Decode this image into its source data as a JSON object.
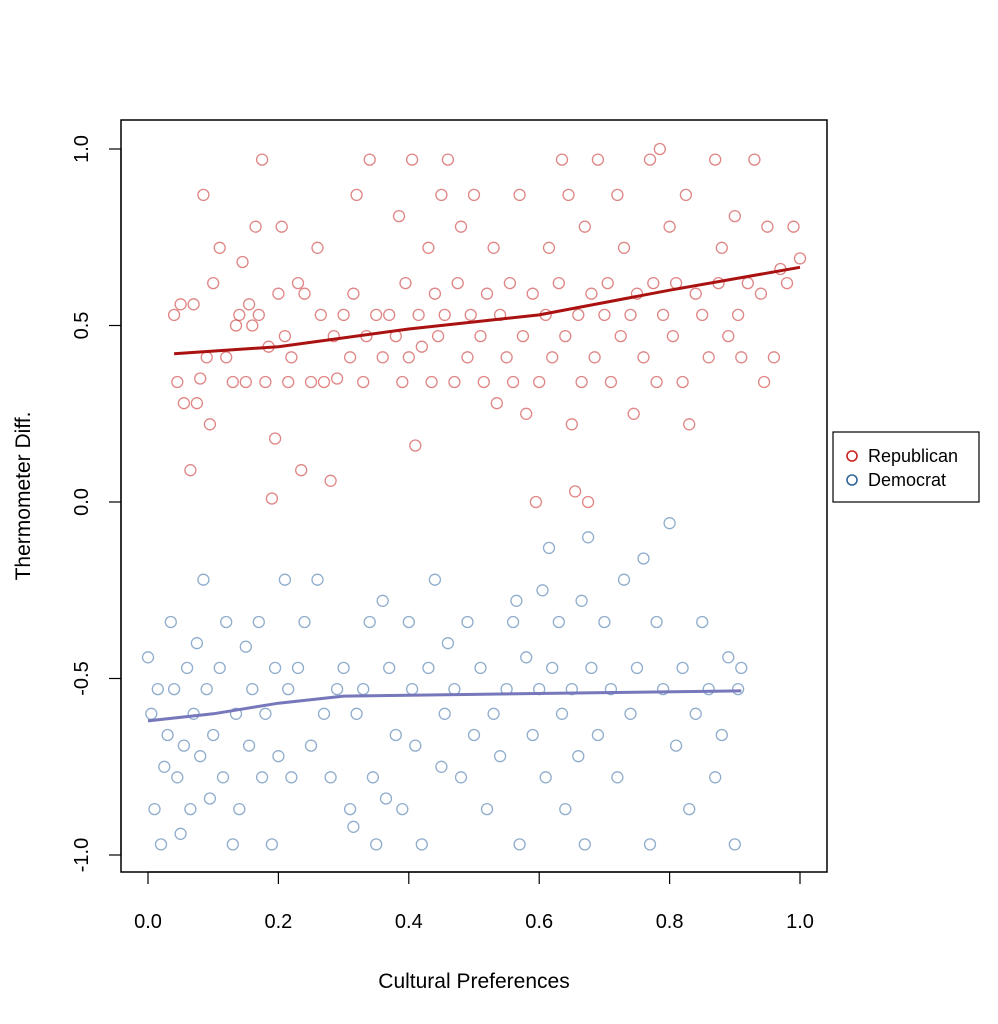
{
  "chart_data": {
    "type": "scatter",
    "title": "",
    "xlabel": "Cultural Preferences",
    "ylabel": "Thermometer Diff.",
    "xlim": [
      -0.04,
      1.04
    ],
    "ylim": [
      -1.06,
      1.08
    ],
    "xticks": [
      0.0,
      0.2,
      0.4,
      0.6,
      0.8,
      1.0
    ],
    "xtick_labels": [
      "0.0",
      "0.2",
      "0.4",
      "0.6",
      "0.8",
      "1.0"
    ],
    "yticks": [
      -1.0,
      -0.5,
      0.0,
      0.5,
      1.0
    ],
    "ytick_labels": [
      "-1.0",
      "-0.5",
      "0.0",
      "0.5",
      "1.0"
    ],
    "legend_position": "right",
    "series": [
      {
        "name": "Republican",
        "color": "#cc3333",
        "line_color": "#aa1111",
        "points": [
          [
            0.04,
            0.53
          ],
          [
            0.045,
            0.34
          ],
          [
            0.05,
            0.56
          ],
          [
            0.055,
            0.28
          ],
          [
            0.065,
            0.09
          ],
          [
            0.07,
            0.56
          ],
          [
            0.075,
            0.28
          ],
          [
            0.08,
            0.35
          ],
          [
            0.085,
            0.87
          ],
          [
            0.09,
            0.41
          ],
          [
            0.095,
            0.22
          ],
          [
            0.1,
            0.62
          ],
          [
            0.11,
            0.72
          ],
          [
            0.12,
            0.41
          ],
          [
            0.13,
            0.34
          ],
          [
            0.135,
            0.5
          ],
          [
            0.14,
            0.53
          ],
          [
            0.145,
            0.68
          ],
          [
            0.15,
            0.34
          ],
          [
            0.155,
            0.56
          ],
          [
            0.16,
            0.5
          ],
          [
            0.165,
            0.78
          ],
          [
            0.17,
            0.53
          ],
          [
            0.175,
            0.97
          ],
          [
            0.18,
            0.34
          ],
          [
            0.185,
            0.44
          ],
          [
            0.19,
            0.01
          ],
          [
            0.195,
            0.18
          ],
          [
            0.2,
            0.59
          ],
          [
            0.205,
            0.78
          ],
          [
            0.21,
            0.47
          ],
          [
            0.215,
            0.34
          ],
          [
            0.22,
            0.41
          ],
          [
            0.23,
            0.62
          ],
          [
            0.235,
            0.09
          ],
          [
            0.24,
            0.59
          ],
          [
            0.25,
            0.34
          ],
          [
            0.26,
            0.72
          ],
          [
            0.265,
            0.53
          ],
          [
            0.27,
            0.34
          ],
          [
            0.28,
            0.06
          ],
          [
            0.285,
            0.47
          ],
          [
            0.29,
            0.35
          ],
          [
            0.3,
            0.53
          ],
          [
            0.31,
            0.41
          ],
          [
            0.315,
            0.59
          ],
          [
            0.32,
            0.87
          ],
          [
            0.33,
            0.34
          ],
          [
            0.335,
            0.47
          ],
          [
            0.34,
            0.97
          ],
          [
            0.35,
            0.53
          ],
          [
            0.36,
            0.41
          ],
          [
            0.37,
            0.53
          ],
          [
            0.38,
            0.47
          ],
          [
            0.385,
            0.81
          ],
          [
            0.39,
            0.34
          ],
          [
            0.395,
            0.62
          ],
          [
            0.4,
            0.41
          ],
          [
            0.405,
            0.97
          ],
          [
            0.41,
            0.16
          ],
          [
            0.415,
            0.53
          ],
          [
            0.42,
            0.44
          ],
          [
            0.43,
            0.72
          ],
          [
            0.435,
            0.34
          ],
          [
            0.44,
            0.59
          ],
          [
            0.445,
            0.47
          ],
          [
            0.45,
            0.87
          ],
          [
            0.455,
            0.53
          ],
          [
            0.46,
            0.97
          ],
          [
            0.47,
            0.34
          ],
          [
            0.475,
            0.62
          ],
          [
            0.48,
            0.78
          ],
          [
            0.49,
            0.41
          ],
          [
            0.495,
            0.53
          ],
          [
            0.5,
            0.87
          ],
          [
            0.51,
            0.47
          ],
          [
            0.515,
            0.34
          ],
          [
            0.52,
            0.59
          ],
          [
            0.53,
            0.72
          ],
          [
            0.535,
            0.28
          ],
          [
            0.54,
            0.53
          ],
          [
            0.55,
            0.41
          ],
          [
            0.555,
            0.62
          ],
          [
            0.56,
            0.34
          ],
          [
            0.57,
            0.87
          ],
          [
            0.575,
            0.47
          ],
          [
            0.58,
            0.25
          ],
          [
            0.59,
            0.59
          ],
          [
            0.595,
            0.0
          ],
          [
            0.6,
            0.34
          ],
          [
            0.61,
            0.53
          ],
          [
            0.615,
            0.72
          ],
          [
            0.62,
            0.41
          ],
          [
            0.63,
            0.62
          ],
          [
            0.635,
            0.97
          ],
          [
            0.64,
            0.47
          ],
          [
            0.645,
            0.87
          ],
          [
            0.65,
            0.22
          ],
          [
            0.655,
            0.03
          ],
          [
            0.66,
            0.53
          ],
          [
            0.665,
            0.34
          ],
          [
            0.67,
            0.78
          ],
          [
            0.675,
            0.0
          ],
          [
            0.68,
            0.59
          ],
          [
            0.685,
            0.41
          ],
          [
            0.69,
            0.97
          ],
          [
            0.7,
            0.53
          ],
          [
            0.705,
            0.62
          ],
          [
            0.71,
            0.34
          ],
          [
            0.72,
            0.87
          ],
          [
            0.725,
            0.47
          ],
          [
            0.73,
            0.72
          ],
          [
            0.74,
            0.53
          ],
          [
            0.745,
            0.25
          ],
          [
            0.75,
            0.59
          ],
          [
            0.76,
            0.41
          ],
          [
            0.77,
            0.97
          ],
          [
            0.775,
            0.62
          ],
          [
            0.78,
            0.34
          ],
          [
            0.785,
            1.0
          ],
          [
            0.79,
            0.53
          ],
          [
            0.8,
            0.78
          ],
          [
            0.805,
            0.47
          ],
          [
            0.81,
            0.62
          ],
          [
            0.82,
            0.34
          ],
          [
            0.825,
            0.87
          ],
          [
            0.83,
            0.22
          ],
          [
            0.84,
            0.59
          ],
          [
            0.85,
            0.53
          ],
          [
            0.86,
            0.41
          ],
          [
            0.87,
            0.97
          ],
          [
            0.875,
            0.62
          ],
          [
            0.88,
            0.72
          ],
          [
            0.89,
            0.47
          ],
          [
            0.9,
            0.81
          ],
          [
            0.905,
            0.53
          ],
          [
            0.91,
            0.41
          ],
          [
            0.92,
            0.62
          ],
          [
            0.93,
            0.97
          ],
          [
            0.94,
            0.59
          ],
          [
            0.945,
            0.34
          ],
          [
            0.95,
            0.78
          ],
          [
            0.96,
            0.41
          ],
          [
            0.97,
            0.66
          ],
          [
            0.98,
            0.62
          ],
          [
            0.99,
            0.78
          ],
          [
            1.0,
            0.69
          ]
        ],
        "smooth": [
          [
            0.04,
            0.42
          ],
          [
            0.2,
            0.44
          ],
          [
            0.4,
            0.49
          ],
          [
            0.6,
            0.53
          ],
          [
            0.8,
            0.6
          ],
          [
            1.0,
            0.665
          ]
        ]
      },
      {
        "name": "Democrat",
        "color": "#4477aa",
        "line_color": "#7777bb",
        "points": [
          [
            0.0,
            -0.44
          ],
          [
            0.005,
            -0.6
          ],
          [
            0.01,
            -0.87
          ],
          [
            0.015,
            -0.53
          ],
          [
            0.02,
            -0.97
          ],
          [
            0.025,
            -0.75
          ],
          [
            0.03,
            -0.66
          ],
          [
            0.035,
            -0.34
          ],
          [
            0.04,
            -0.53
          ],
          [
            0.045,
            -0.78
          ],
          [
            0.05,
            -0.94
          ],
          [
            0.055,
            -0.69
          ],
          [
            0.06,
            -0.47
          ],
          [
            0.065,
            -0.87
          ],
          [
            0.07,
            -0.6
          ],
          [
            0.075,
            -0.4
          ],
          [
            0.08,
            -0.72
          ],
          [
            0.085,
            -0.22
          ],
          [
            0.09,
            -0.53
          ],
          [
            0.095,
            -0.84
          ],
          [
            0.1,
            -0.66
          ],
          [
            0.11,
            -0.47
          ],
          [
            0.115,
            -0.78
          ],
          [
            0.12,
            -0.34
          ],
          [
            0.13,
            -0.97
          ],
          [
            0.135,
            -0.6
          ],
          [
            0.14,
            -0.87
          ],
          [
            0.15,
            -0.41
          ],
          [
            0.155,
            -0.69
          ],
          [
            0.16,
            -0.53
          ],
          [
            0.17,
            -0.34
          ],
          [
            0.175,
            -0.78
          ],
          [
            0.18,
            -0.6
          ],
          [
            0.19,
            -0.97
          ],
          [
            0.195,
            -0.47
          ],
          [
            0.2,
            -0.72
          ],
          [
            0.21,
            -0.22
          ],
          [
            0.215,
            -0.53
          ],
          [
            0.22,
            -0.78
          ],
          [
            0.23,
            -0.47
          ],
          [
            0.24,
            -0.34
          ],
          [
            0.25,
            -0.69
          ],
          [
            0.26,
            -0.22
          ],
          [
            0.27,
            -0.6
          ],
          [
            0.28,
            -0.78
          ],
          [
            0.29,
            -0.53
          ],
          [
            0.3,
            -0.47
          ],
          [
            0.31,
            -0.87
          ],
          [
            0.315,
            -0.92
          ],
          [
            0.32,
            -0.6
          ],
          [
            0.33,
            -0.53
          ],
          [
            0.34,
            -0.34
          ],
          [
            0.345,
            -0.78
          ],
          [
            0.35,
            -0.97
          ],
          [
            0.36,
            -0.28
          ],
          [
            0.365,
            -0.84
          ],
          [
            0.37,
            -0.47
          ],
          [
            0.38,
            -0.66
          ],
          [
            0.39,
            -0.87
          ],
          [
            0.4,
            -0.34
          ],
          [
            0.405,
            -0.53
          ],
          [
            0.41,
            -0.69
          ],
          [
            0.42,
            -0.97
          ],
          [
            0.43,
            -0.47
          ],
          [
            0.44,
            -0.22
          ],
          [
            0.45,
            -0.75
          ],
          [
            0.455,
            -0.6
          ],
          [
            0.46,
            -0.4
          ],
          [
            0.47,
            -0.53
          ],
          [
            0.48,
            -0.78
          ],
          [
            0.49,
            -0.34
          ],
          [
            0.5,
            -0.66
          ],
          [
            0.51,
            -0.47
          ],
          [
            0.52,
            -0.87
          ],
          [
            0.53,
            -0.6
          ],
          [
            0.54,
            -0.72
          ],
          [
            0.55,
            -0.53
          ],
          [
            0.56,
            -0.34
          ],
          [
            0.565,
            -0.28
          ],
          [
            0.57,
            -0.97
          ],
          [
            0.58,
            -0.44
          ],
          [
            0.59,
            -0.66
          ],
          [
            0.6,
            -0.53
          ],
          [
            0.605,
            -0.25
          ],
          [
            0.61,
            -0.78
          ],
          [
            0.615,
            -0.13
          ],
          [
            0.62,
            -0.47
          ],
          [
            0.63,
            -0.34
          ],
          [
            0.635,
            -0.6
          ],
          [
            0.64,
            -0.87
          ],
          [
            0.65,
            -0.53
          ],
          [
            0.66,
            -0.72
          ],
          [
            0.665,
            -0.28
          ],
          [
            0.67,
            -0.97
          ],
          [
            0.675,
            -0.1
          ],
          [
            0.68,
            -0.47
          ],
          [
            0.69,
            -0.66
          ],
          [
            0.7,
            -0.34
          ],
          [
            0.71,
            -0.53
          ],
          [
            0.72,
            -0.78
          ],
          [
            0.73,
            -0.22
          ],
          [
            0.74,
            -0.6
          ],
          [
            0.75,
            -0.47
          ],
          [
            0.76,
            -0.16
          ],
          [
            0.77,
            -0.97
          ],
          [
            0.78,
            -0.34
          ],
          [
            0.79,
            -0.53
          ],
          [
            0.8,
            -0.06
          ],
          [
            0.81,
            -0.69
          ],
          [
            0.82,
            -0.47
          ],
          [
            0.83,
            -0.87
          ],
          [
            0.84,
            -0.6
          ],
          [
            0.85,
            -0.34
          ],
          [
            0.86,
            -0.53
          ],
          [
            0.87,
            -0.78
          ],
          [
            0.88,
            -0.66
          ],
          [
            0.89,
            -0.44
          ],
          [
            0.9,
            -0.97
          ],
          [
            0.905,
            -0.53
          ],
          [
            0.91,
            -0.47
          ]
        ],
        "smooth": [
          [
            0.0,
            -0.62
          ],
          [
            0.1,
            -0.6
          ],
          [
            0.2,
            -0.57
          ],
          [
            0.3,
            -0.55
          ],
          [
            0.5,
            -0.545
          ],
          [
            0.7,
            -0.54
          ],
          [
            0.91,
            -0.535
          ]
        ]
      }
    ]
  }
}
